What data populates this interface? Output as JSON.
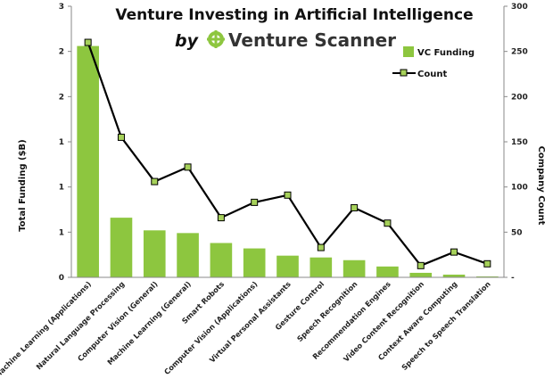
{
  "chart_data": {
    "type": "bar",
    "title": "Venture Investing in Artificial Intelligence",
    "byline": "by",
    "brand": "Venture Scanner",
    "ylabel": "Total Funding ($B)",
    "y2label": "Company Count",
    "ylim": [
      0,
      3
    ],
    "y2lim": [
      0,
      300
    ],
    "yticks": [
      "0",
      "1",
      "1",
      "1",
      "2",
      "2",
      "3"
    ],
    "y2ticks": [
      "-",
      "50",
      "100",
      "150",
      "200",
      "250",
      "300"
    ],
    "categories": [
      "Machine Learning (Applications)",
      "Natural Language Processing",
      "Computer Vision (General)",
      "Machine Learning (General)",
      "Smart Robots",
      "Computer Vision (Applications)",
      "Virtual Personal Assistants",
      "Gesture Control",
      "Speech Recognition",
      "Recommendation Engines",
      "Video Content Recognition",
      "Context Aware Computing",
      "Speech to Speech Translation"
    ],
    "series": [
      {
        "name": "VC Funding",
        "type": "bar",
        "axis": "left",
        "color": "#8dc63f",
        "values": [
          2.56,
          0.66,
          0.52,
          0.49,
          0.38,
          0.32,
          0.24,
          0.22,
          0.19,
          0.12,
          0.05,
          0.03,
          0.01
        ]
      },
      {
        "name": "Count",
        "type": "line",
        "axis": "right",
        "color": "#000000",
        "marker_color": "#a6d15a",
        "values": [
          260,
          155,
          106,
          122,
          66,
          83,
          91,
          33,
          77,
          60,
          13,
          28,
          15
        ]
      }
    ],
    "legend_position": "top-right",
    "grid": false
  }
}
